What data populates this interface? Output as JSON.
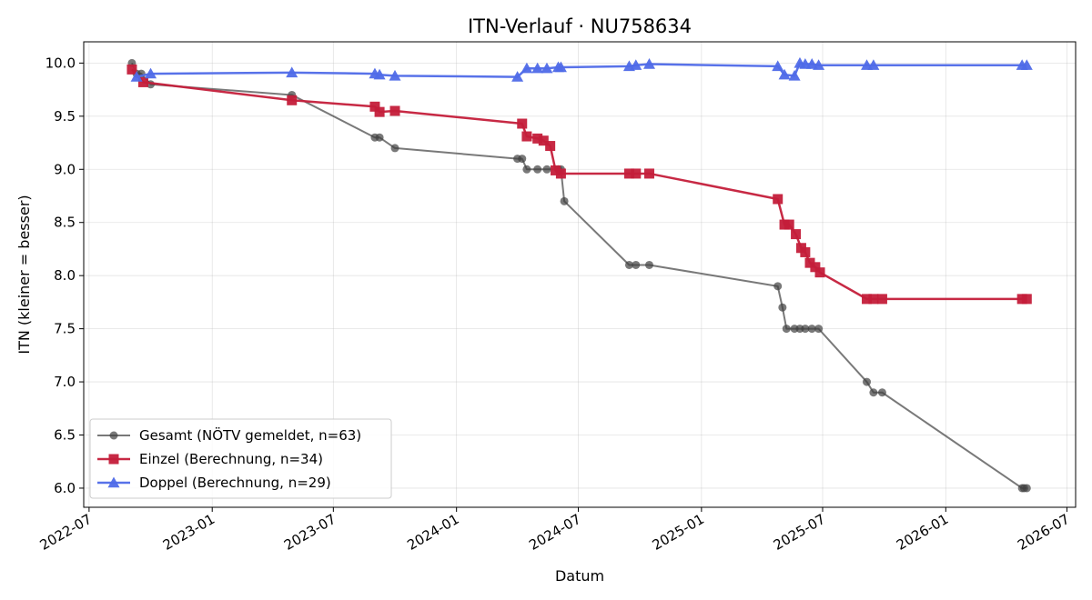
{
  "chart_data": {
    "type": "line",
    "title": "ITN-Verlauf · NU758634",
    "xlabel": "Datum",
    "ylabel": "ITN  (kleiner = besser)",
    "x_is_date": true,
    "xlim": [
      "2022-06-23",
      "2026-07-14"
    ],
    "ylim": [
      5.82,
      10.2
    ],
    "grid": true,
    "legend_position": "lower-left",
    "x_ticks": [
      "2022-07-01",
      "2023-01-01",
      "2023-07-01",
      "2024-01-01",
      "2024-07-01",
      "2025-01-01",
      "2025-07-01",
      "2026-01-01",
      "2026-07-01"
    ],
    "x_tick_labels": [
      "2022-07",
      "2023-01",
      "2023-07",
      "2024-01",
      "2024-07",
      "2025-01",
      "2025-07",
      "2026-01",
      "2026-07"
    ],
    "y_ticks": [
      6.0,
      6.5,
      7.0,
      7.5,
      8.0,
      8.5,
      9.0,
      9.5,
      10.0
    ],
    "y_tick_labels": [
      "6.0",
      "6.5",
      "7.0",
      "7.5",
      "8.0",
      "8.5",
      "9.0",
      "9.5",
      "10.0"
    ],
    "series": [
      {
        "name": "Gesamt (NÖTV gemeldet, n=63)",
        "color": "#404040",
        "marker": "circle",
        "x": [
          "2022-09-03",
          "2022-09-10",
          "2022-09-17",
          "2022-10-01",
          "2023-04-30",
          "2023-09-01",
          "2023-09-08",
          "2023-10-01",
          "2024-04-01",
          "2024-04-08",
          "2024-04-15",
          "2024-05-01",
          "2024-05-15",
          "2024-06-01",
          "2024-06-05",
          "2024-06-10",
          "2024-09-15",
          "2024-09-25",
          "2024-10-15",
          "2025-04-25",
          "2025-05-02",
          "2025-05-08",
          "2025-05-20",
          "2025-05-28",
          "2025-06-05",
          "2025-06-15",
          "2025-06-25",
          "2025-09-05",
          "2025-09-15",
          "2025-09-28",
          "2026-04-25",
          "2026-04-28",
          "2026-05-02"
        ],
        "values": [
          10.0,
          9.9,
          9.9,
          9.8,
          9.7,
          9.3,
          9.3,
          9.2,
          9.1,
          9.1,
          9.0,
          9.0,
          9.0,
          9.0,
          9.0,
          8.7,
          8.1,
          8.1,
          8.1,
          7.9,
          7.7,
          7.5,
          7.5,
          7.5,
          7.5,
          7.5,
          7.5,
          7.0,
          6.9,
          6.9,
          6.0,
          6.0,
          6.0
        ]
      },
      {
        "name": "Einzel (Berechnung, n=34)",
        "color": "#c41e3a",
        "marker": "square",
        "x": [
          "2022-09-03",
          "2022-09-20",
          "2023-04-30",
          "2023-09-01",
          "2023-09-08",
          "2023-10-01",
          "2024-04-08",
          "2024-04-15",
          "2024-05-01",
          "2024-05-10",
          "2024-05-20",
          "2024-05-28",
          "2024-06-05",
          "2024-09-15",
          "2024-09-25",
          "2024-10-15",
          "2025-04-25",
          "2025-05-05",
          "2025-05-12",
          "2025-05-22",
          "2025-05-30",
          "2025-06-05",
          "2025-06-12",
          "2025-06-20",
          "2025-06-27",
          "2025-09-05",
          "2025-09-15",
          "2025-09-28",
          "2026-04-25",
          "2026-05-02"
        ],
        "values": [
          9.94,
          9.82,
          9.65,
          9.59,
          9.54,
          9.55,
          9.43,
          9.31,
          9.29,
          9.27,
          9.22,
          8.99,
          8.96,
          8.96,
          8.96,
          8.96,
          8.72,
          8.48,
          8.48,
          8.39,
          8.26,
          8.22,
          8.12,
          8.08,
          8.03,
          7.78,
          7.78,
          7.78,
          7.78,
          7.78
        ]
      },
      {
        "name": "Doppel (Berechnung, n=29)",
        "color": "#4f6ae8",
        "marker": "triangle",
        "x": [
          "2022-09-10",
          "2022-10-01",
          "2023-04-30",
          "2023-09-01",
          "2023-09-08",
          "2023-10-01",
          "2024-04-01",
          "2024-04-15",
          "2024-05-01",
          "2024-05-15",
          "2024-06-01",
          "2024-06-05",
          "2024-09-15",
          "2024-09-25",
          "2024-10-15",
          "2025-04-25",
          "2025-05-05",
          "2025-05-20",
          "2025-05-28",
          "2025-06-05",
          "2025-06-15",
          "2025-06-25",
          "2025-09-05",
          "2025-09-15",
          "2026-04-25",
          "2026-05-02"
        ],
        "values": [
          9.87,
          9.9,
          9.91,
          9.9,
          9.89,
          9.88,
          9.87,
          9.95,
          9.95,
          9.95,
          9.96,
          9.96,
          9.97,
          9.98,
          9.99,
          9.97,
          9.89,
          9.88,
          10.0,
          9.99,
          9.99,
          9.98,
          9.98,
          9.98,
          9.98,
          9.98
        ]
      }
    ]
  }
}
